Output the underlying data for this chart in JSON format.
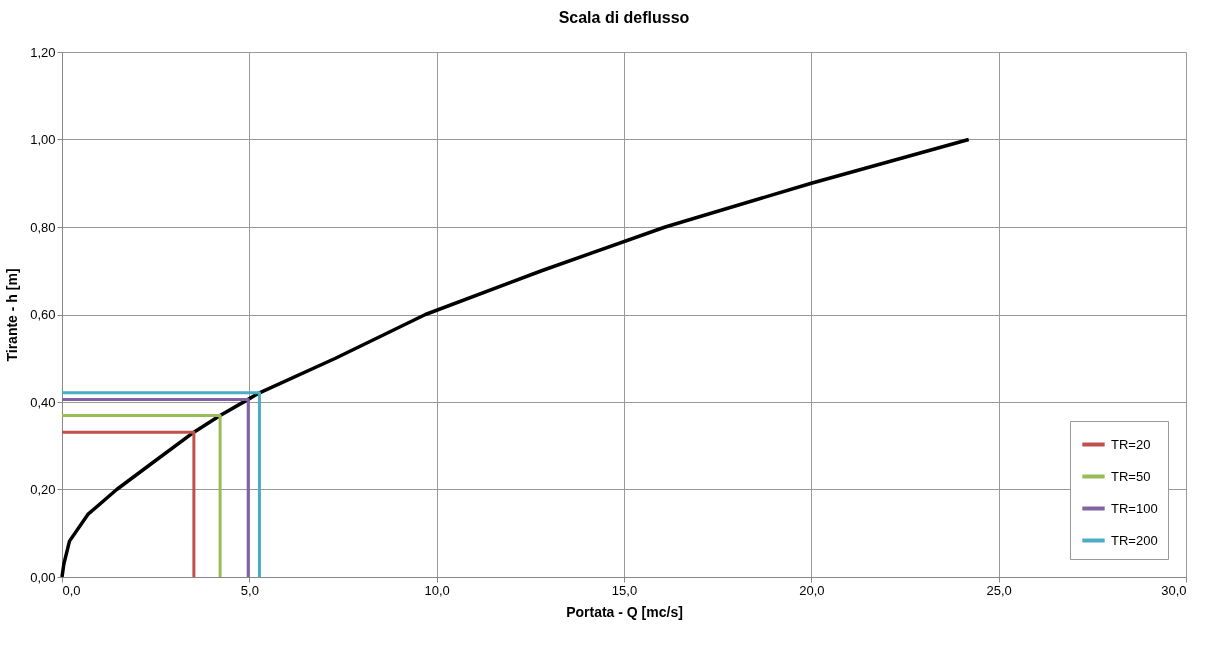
{
  "chart_data": {
    "type": "line",
    "title": "Scala di deflusso",
    "xlabel": "Portata  - Q [mc/s]",
    "ylabel": "Tirante - h [m]",
    "xlim": [
      0,
      30
    ],
    "ylim": [
      0,
      1.2
    ],
    "xticks": [
      {
        "value": 0,
        "label": "0,0"
      },
      {
        "value": 5,
        "label": "5,0"
      },
      {
        "value": 10,
        "label": "10,0"
      },
      {
        "value": 15,
        "label": "15,0"
      },
      {
        "value": 20,
        "label": "20,0"
      },
      {
        "value": 25,
        "label": "25,0"
      },
      {
        "value": 30,
        "label": "30,0"
      }
    ],
    "yticks": [
      {
        "value": 0,
        "label": "0,00"
      },
      {
        "value": 0.2,
        "label": "0,20"
      },
      {
        "value": 0.4,
        "label": "0,40"
      },
      {
        "value": 0.6,
        "label": "0,60"
      },
      {
        "value": 0.8,
        "label": "0,80"
      },
      {
        "value": 1,
        "label": "1,00"
      },
      {
        "value": 1.2,
        "label": "1,20"
      }
    ],
    "grid": true,
    "legend": "bottom right",
    "marker": "none",
    "line_style": "solid",
    "series": [
      {
        "color": "#000000",
        "x": [
          0,
          0.05,
          0.2,
          0.69,
          1.46,
          2.4,
          3.52,
          4.22,
          4.97,
          5.27,
          7.3,
          9.7,
          12.8,
          16.1,
          20.0,
          24.2
        ],
        "values": [
          0,
          0.03,
          0.082,
          0.143,
          0.2,
          0.26,
          0.331,
          0.369,
          0.406,
          0.421,
          0.5,
          0.6,
          0.7,
          0.8,
          0.9,
          1.0
        ]
      },
      {
        "name": "TR=20",
        "color": "#c0504d",
        "x": [
          0,
          3.52,
          3.52
        ],
        "values": [
          0.331,
          0.331,
          0
        ]
      },
      {
        "name": "TR=50",
        "color": "#9bbb59",
        "x": [
          0,
          4.22,
          4.22
        ],
        "values": [
          0.369,
          0.369,
          0
        ]
      },
      {
        "name": "TR=100",
        "color": "#8064a2",
        "x": [
          0,
          4.97,
          4.97
        ],
        "values": [
          0.406,
          0.406,
          0
        ]
      },
      {
        "name": "TR=200",
        "color": "#4bacc6",
        "x": [
          0,
          5.27,
          5.27
        ],
        "values": [
          0.421,
          0.421,
          0
        ]
      }
    ]
  }
}
